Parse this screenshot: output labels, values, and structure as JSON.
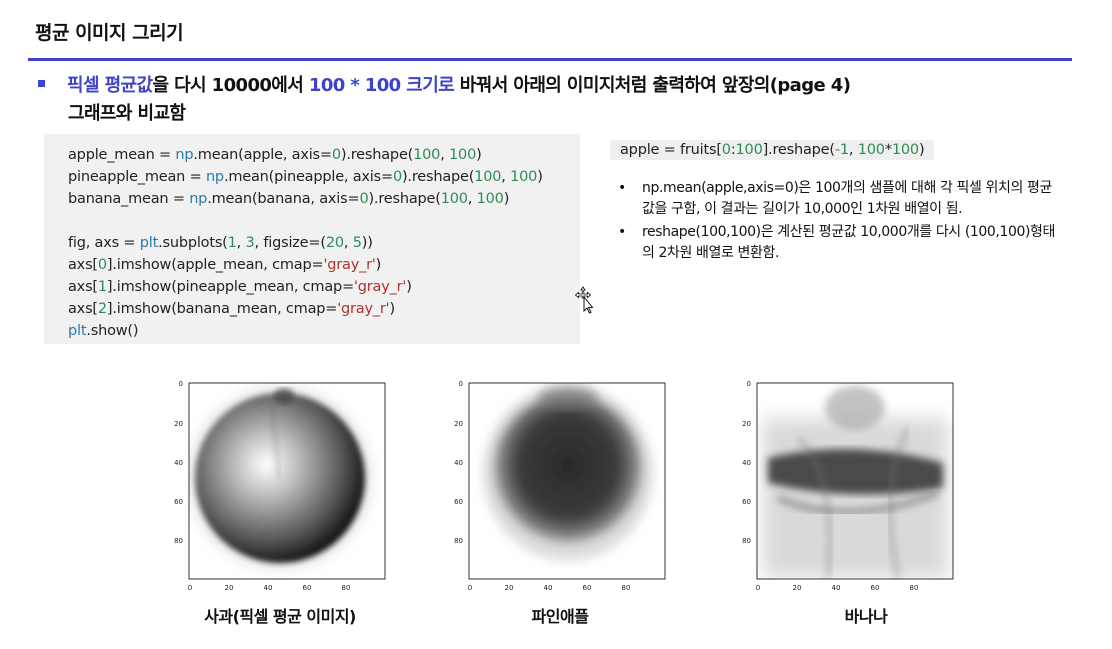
{
  "header": {
    "title": "평균 이미지 그리기"
  },
  "bullet": {
    "p1": "픽셀 평균값",
    "p2": "을 다시 10000에서 ",
    "p3": "100 * 100 크기로",
    "p4": " 바꿔서 아래의 이미지처럼 출력하여 앞장의(page 4)",
    "p5": "그래프와 비교함"
  },
  "code": {
    "line1": {
      "a": "apple_mean = ",
      "b": "np",
      "c": ".mean(apple, axis=",
      "d": "0",
      "e": ").reshape(",
      "f": "100",
      "g": ", ",
      "h": "100",
      "i": ")"
    },
    "line2": {
      "a": "pineapple_mean = ",
      "b": "np",
      "c": ".mean(pineapple, axis=",
      "d": "0",
      "e": ").reshape(",
      "f": "100",
      "g": ", ",
      "h": "100",
      "i": ")"
    },
    "line3": {
      "a": "banana_mean = ",
      "b": "np",
      "c": ".mean(banana, axis=",
      "d": "0",
      "e": ").reshape(",
      "f": "100",
      "g": ", ",
      "h": "100",
      "i": ")"
    },
    "line5": {
      "a": "fig, axs = ",
      "b": "plt",
      "c": ".subplots(",
      "d": "1",
      "e": ", ",
      "f": "3",
      "g": ", figsize=(",
      "h": "20",
      "i": ", ",
      "j": "5",
      "k": "))"
    },
    "line6": {
      "a": "axs[",
      "b": "0",
      "c": "].imshow(apple_mean, cmap=",
      "d": "'gray_r'",
      "e": ")"
    },
    "line7": {
      "a": "axs[",
      "b": "1",
      "c": "].imshow(pineapple_mean, cmap=",
      "d": "'gray_r'",
      "e": ")"
    },
    "line8": {
      "a": "axs[",
      "b": "2",
      "c": "].imshow(banana_mean, cmap=",
      "d": "'gray_r'",
      "e": ")"
    },
    "line9": {
      "a": "plt",
      "b": ".show()"
    }
  },
  "inline_code": {
    "a": "apple = fruits[",
    "b": "0",
    "c": ":",
    "d": "100",
    "e": "].reshape(",
    "f": "-1",
    "g": ", ",
    "h": "100",
    "i": "*",
    "j": "100",
    "k": ")"
  },
  "notes": [
    {
      "dot": "•",
      "text": "np.mean(apple,axis=0)은 100개의 샘플에 대해 각 픽셀 위치의 평균값을 구함, 이 결과는 길이가 10,000인 1차원 배열이 됨."
    },
    {
      "dot": "•",
      "text": "reshape(100,100)은 계산된 평균값 10,000개를 다시 (100,100)형태의 2차원 배열로 변환함."
    }
  ],
  "panels": [
    {
      "caption": "사과(픽셀 평균 이미지)",
      "image": "apple-mean-image"
    },
    {
      "caption": "파인애플",
      "image": "pineapple-mean-image"
    },
    {
      "caption": "바나나",
      "image": "banana-mean-image"
    }
  ],
  "axis_ticks": {
    "x": [
      "0",
      "20",
      "40",
      "60",
      "80"
    ],
    "y": [
      "0",
      "20",
      "40",
      "60",
      "80"
    ]
  },
  "colors": {
    "accent": "#3e44c9",
    "code_bg": "#f1f1f1"
  }
}
